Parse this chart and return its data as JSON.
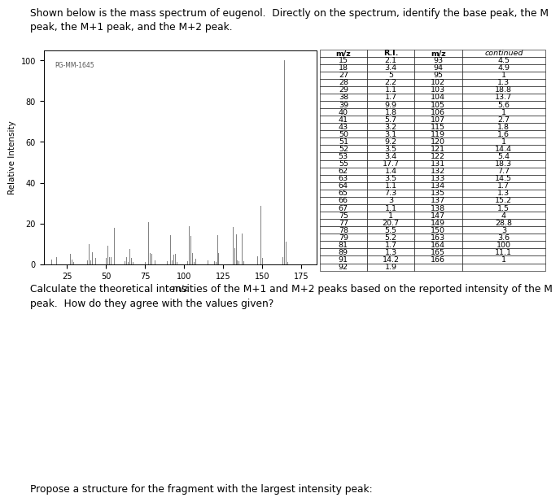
{
  "title_text": "Shown below is the mass spectrum of eugenol.  Directly on the spectrum, identify the base peak, the M\npeak, the M+1 peak, and the M+2 peak.",
  "spectrum_label": "PG-MM-1645",
  "ylabel": "Relative Intensity",
  "xlabel": "m/z",
  "xlim": [
    10,
    185
  ],
  "ylim": [
    0,
    105
  ],
  "yticks": [
    0,
    20,
    40,
    60,
    80,
    100
  ],
  "xticks": [
    25,
    50,
    75,
    100,
    125,
    150,
    175
  ],
  "peaks": [
    [
      15,
      2.1
    ],
    [
      18,
      3.4
    ],
    [
      27,
      5.0
    ],
    [
      28,
      2.2
    ],
    [
      29,
      1.1
    ],
    [
      38,
      1.7
    ],
    [
      39,
      9.9
    ],
    [
      40,
      1.8
    ],
    [
      41,
      5.7
    ],
    [
      43,
      3.2
    ],
    [
      50,
      3.1
    ],
    [
      51,
      9.2
    ],
    [
      52,
      3.5
    ],
    [
      53,
      3.4
    ],
    [
      55,
      17.7
    ],
    [
      62,
      1.4
    ],
    [
      63,
      3.5
    ],
    [
      64,
      1.1
    ],
    [
      65,
      7.3
    ],
    [
      66,
      3.0
    ],
    [
      67,
      1.1
    ],
    [
      75,
      1.0
    ],
    [
      77,
      20.7
    ],
    [
      78,
      5.5
    ],
    [
      79,
      5.2
    ],
    [
      81,
      1.7
    ],
    [
      89,
      1.3
    ],
    [
      91,
      14.2
    ],
    [
      92,
      1.9
    ],
    [
      93,
      4.5
    ],
    [
      94,
      4.9
    ],
    [
      95,
      1.0
    ],
    [
      102,
      1.3
    ],
    [
      103,
      18.8
    ],
    [
      104,
      13.7
    ],
    [
      105,
      5.6
    ],
    [
      106,
      1.0
    ],
    [
      107,
      2.7
    ],
    [
      115,
      1.8
    ],
    [
      119,
      1.6
    ],
    [
      120,
      1.0
    ],
    [
      121,
      14.4
    ],
    [
      122,
      5.4
    ],
    [
      131,
      18.3
    ],
    [
      132,
      7.7
    ],
    [
      133,
      14.5
    ],
    [
      134,
      1.7
    ],
    [
      135,
      1.3
    ],
    [
      137,
      15.2
    ],
    [
      138,
      1.5
    ],
    [
      147,
      4.0
    ],
    [
      149,
      28.8
    ],
    [
      150,
      3.0
    ],
    [
      163,
      3.6
    ],
    [
      164,
      100.0
    ],
    [
      165,
      11.1
    ],
    [
      166,
      1.0
    ]
  ],
  "table_left_mz": [
    15,
    18,
    27,
    28,
    29,
    38,
    39,
    40,
    41,
    43,
    50,
    51,
    52,
    53,
    55,
    62,
    63,
    64,
    65,
    66,
    67,
    75,
    77,
    78,
    79,
    81,
    89,
    91,
    92
  ],
  "table_left_ri": [
    2.1,
    3.4,
    5,
    2.2,
    1.1,
    1.7,
    9.9,
    1.8,
    5.7,
    3.2,
    3.1,
    9.2,
    3.5,
    3.4,
    17.7,
    1.4,
    3.5,
    1.1,
    7.3,
    3,
    1.1,
    1,
    20.7,
    5.5,
    5.2,
    1.7,
    1.3,
    14.2,
    1.9
  ],
  "table_right_mz": [
    93,
    94,
    95,
    102,
    103,
    104,
    105,
    106,
    107,
    115,
    119,
    120,
    121,
    122,
    131,
    132,
    133,
    134,
    135,
    137,
    138,
    147,
    149,
    150,
    163,
    164,
    165,
    166
  ],
  "table_right_ri": [
    4.5,
    4.9,
    1,
    1.3,
    18.8,
    13.7,
    5.6,
    1,
    2.7,
    1.8,
    1.6,
    1,
    14.4,
    5.4,
    18.3,
    7.7,
    14.5,
    1.7,
    1.3,
    15.2,
    1.5,
    4,
    28.8,
    3,
    3.6,
    100,
    11.1,
    1
  ],
  "question1": "Calculate the theoretical intensities of the M+1 and M+2 peaks based on the reported intensity of the M\npeak.  How do they agree with the values given?",
  "question2": "Propose a structure for the fragment with the largest intensity peak:",
  "bar_color": "#808080",
  "background_color": "#ffffff"
}
